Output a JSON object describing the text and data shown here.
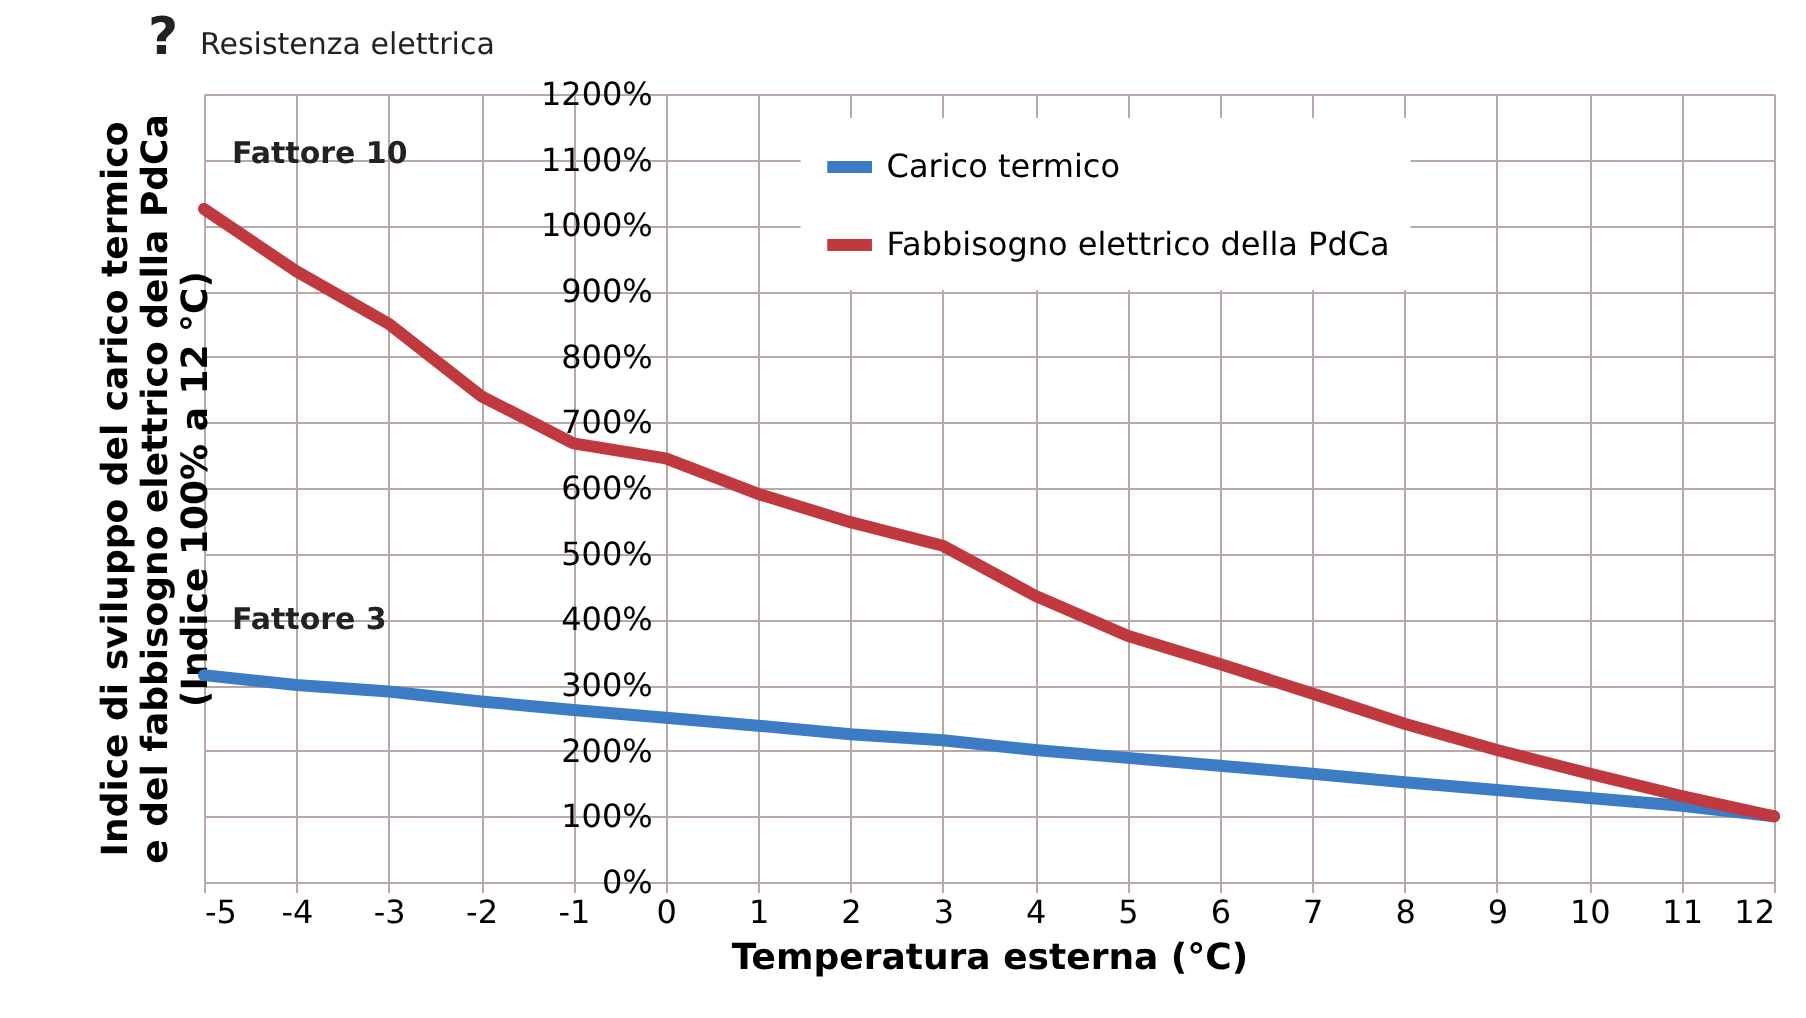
{
  "chart_data": {
    "type": "line",
    "xlabel": "Temperatura esterna (°C)",
    "ylabel": "Indice di sviluppo del carico termico\ne del fabbisogno elettrico della PdCa\n(Indice 100% a 12 °C)",
    "x": [
      -5,
      -4,
      -3,
      -2,
      -1,
      0,
      1,
      2,
      3,
      4,
      5,
      6,
      7,
      8,
      9,
      10,
      11,
      12
    ],
    "series": [
      {
        "name": "Carico termico",
        "color": "#3b7cc4",
        "values": [
          315,
          300,
          290,
          275,
          262,
          250,
          238,
          225,
          216,
          201,
          189,
          177,
          165,
          152,
          140,
          128,
          116,
          100
        ]
      },
      {
        "name": "Fabbisogno elettrico della PdCa",
        "color": "#c0393f",
        "values": [
          1025,
          930,
          850,
          740,
          668,
          645,
          591,
          548,
          512,
          436,
          375,
          332,
          287,
          241,
          201,
          165,
          131,
          100
        ]
      }
    ],
    "xlim": [
      -5,
      12
    ],
    "xticks": [
      -5,
      -4,
      -3,
      -2,
      -1,
      0,
      1,
      2,
      3,
      4,
      5,
      6,
      7,
      8,
      9,
      10,
      11,
      12
    ],
    "ylim": [
      0,
      1200
    ],
    "yticks": [
      {
        "value": 0,
        "label": "0%"
      },
      {
        "value": 100,
        "label": "100%"
      },
      {
        "value": 200,
        "label": "200%"
      },
      {
        "value": 300,
        "label": "300%"
      },
      {
        "value": 400,
        "label": "400%"
      },
      {
        "value": 500,
        "label": "500%"
      },
      {
        "value": 600,
        "label": "600%"
      },
      {
        "value": 700,
        "label": "700%"
      },
      {
        "value": 800,
        "label": "800%"
      },
      {
        "value": 900,
        "label": "900%"
      },
      {
        "value": 1000,
        "label": "1000%"
      },
      {
        "value": 1100,
        "label": "1100%"
      },
      {
        "value": 1200,
        "label": "1200%"
      }
    ],
    "grid": true,
    "legend": "top right",
    "marker": "none",
    "line_style": "solid",
    "annotations": [
      {
        "text": "Fattore 10",
        "x": -5,
        "y": 1025
      },
      {
        "text": "Fattore 3",
        "x": -5,
        "y": 315
      },
      "?",
      "Resistenza elettrica"
    ]
  }
}
